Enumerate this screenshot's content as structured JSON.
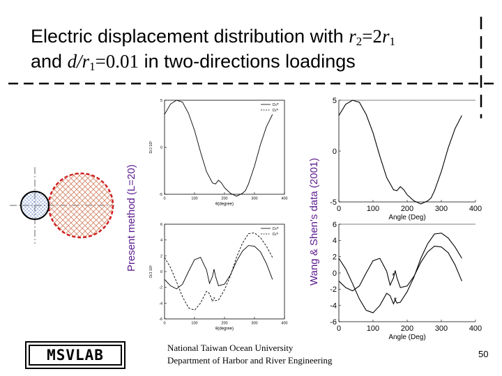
{
  "title": {
    "line1_text": "Electric displacement distribution    with ",
    "line1_math_r2": "r",
    "line1_sub2": "2",
    "line1_eq": "=2",
    "line1_math_r1": "r",
    "line1_sub1": "1",
    "line2_text1": "and ",
    "line2_math": "d/r",
    "line2_sub": "1",
    "line2_eq": "=0.01",
    "line2_text2": " in two-directions loadings"
  },
  "labels": {
    "left": "Present method (L=20)",
    "right": "Wang & Shen's data (2001)"
  },
  "logo": "MSVLAB",
  "footer": {
    "line1": "National Taiwan Ocean University",
    "line2": "Department of Harbor and River Engineering"
  },
  "page_number": "50",
  "colors": {
    "title_accent": "#000000",
    "label_color": "#5a1a8c",
    "inclusion_hatch": "#d08060",
    "inclusion_border": "#d02020",
    "hole_color": "#3060c0"
  },
  "chart_data": [
    {
      "type": "line",
      "id": "present-top",
      "xlabel": "θ(degree)",
      "ylabel": "D/J 10²",
      "xlim": [
        0,
        400
      ],
      "ylim": [
        -5,
        5
      ],
      "xticks": [
        "0",
        "100",
        "200",
        "300",
        "400"
      ],
      "yticks": [
        "5",
        "0",
        "-5"
      ],
      "legend": [
        "Dₙᴿ",
        "Dₜᴿ"
      ],
      "series": [
        {
          "name": "Dₙᴿ",
          "style": "solid",
          "x": [
            0,
            20,
            40,
            60,
            80,
            100,
            120,
            140,
            160,
            170,
            180,
            190,
            200,
            220,
            240,
            260,
            270,
            280,
            300,
            320,
            340,
            360
          ],
          "y": [
            3.5,
            4.6,
            5.0,
            4.8,
            3.6,
            1.8,
            -0.5,
            -2.6,
            -3.8,
            -3.9,
            -3.5,
            -3.8,
            -4.3,
            -4.9,
            -5.2,
            -4.9,
            -4.6,
            -3.9,
            -2.0,
            0.3,
            2.2,
            3.5
          ]
        }
      ]
    },
    {
      "type": "line",
      "id": "present-bottom",
      "xlabel": "θ(degree)",
      "ylabel": "D/J 10²",
      "xlim": [
        0,
        400
      ],
      "ylim": [
        -6,
        6
      ],
      "xticks": [
        "0",
        "100",
        "200",
        "300",
        "400"
      ],
      "yticks": [
        "6",
        "4",
        "2",
        "0",
        "-2",
        "-4",
        "-6"
      ],
      "legend": [
        "Dₙᴿ",
        "Dₜᴿ"
      ],
      "series": [
        {
          "name": "Dₙᴿ",
          "style": "solid",
          "x": [
            0,
            20,
            40,
            60,
            80,
            100,
            120,
            140,
            150,
            160,
            165,
            170,
            180,
            200,
            220,
            240,
            260,
            280,
            300,
            320,
            340,
            360
          ],
          "y": [
            -1.0,
            -1.8,
            -2.2,
            -1.6,
            0.0,
            1.5,
            1.8,
            0.2,
            -1.5,
            -0.6,
            0.3,
            -0.6,
            -1.8,
            -1.6,
            -0.4,
            1.3,
            2.6,
            3.3,
            3.2,
            2.5,
            1.0,
            -1.0
          ]
        },
        {
          "name": "Dₜᴿ",
          "style": "dashed",
          "x": [
            0,
            20,
            40,
            60,
            80,
            100,
            120,
            140,
            150,
            160,
            165,
            170,
            180,
            200,
            220,
            240,
            260,
            280,
            300,
            320,
            340,
            360
          ],
          "y": [
            1.8,
            0.5,
            -1.3,
            -3.2,
            -4.6,
            -4.9,
            -4.0,
            -2.5,
            -2.8,
            -3.8,
            -3.3,
            -3.7,
            -3.6,
            -2.3,
            -0.5,
            1.8,
            3.6,
            4.8,
            4.9,
            4.3,
            3.2,
            1.8
          ]
        }
      ]
    },
    {
      "type": "line",
      "id": "wang-top",
      "xlabel": "Angle (Deg)",
      "ylabel": "",
      "xlim": [
        0,
        400
      ],
      "ylim": [
        -5,
        5
      ],
      "xticks": [
        "0",
        "100",
        "200",
        "300",
        "400"
      ],
      "yticks": [
        "5",
        "0",
        "-5"
      ],
      "series": [
        {
          "name": "",
          "style": "solid",
          "x": [
            0,
            20,
            40,
            60,
            80,
            100,
            120,
            140,
            160,
            170,
            180,
            190,
            200,
            220,
            240,
            260,
            270,
            280,
            300,
            320,
            340,
            360
          ],
          "y": [
            3.5,
            4.6,
            5.0,
            4.8,
            3.6,
            1.8,
            -0.5,
            -2.6,
            -3.8,
            -3.9,
            -3.5,
            -3.8,
            -4.3,
            -4.9,
            -5.2,
            -4.9,
            -4.6,
            -3.9,
            -2.0,
            0.3,
            2.2,
            3.5
          ]
        }
      ]
    },
    {
      "type": "line",
      "id": "wang-bottom",
      "xlabel": "Angle (Deg)",
      "ylabel": "",
      "xlim": [
        0,
        400
      ],
      "ylim": [
        -6,
        6
      ],
      "xticks": [
        "0",
        "100",
        "200",
        "300",
        "400"
      ],
      "yticks": [
        "6",
        "4",
        "2",
        "0",
        "-2",
        "-4",
        "-6"
      ],
      "series": [
        {
          "name": "",
          "style": "solid",
          "x": [
            0,
            20,
            40,
            60,
            80,
            100,
            120,
            140,
            150,
            160,
            165,
            170,
            180,
            200,
            220,
            240,
            260,
            280,
            300,
            320,
            340,
            360
          ],
          "y": [
            -1.0,
            -1.8,
            -2.2,
            -1.6,
            0.0,
            1.5,
            1.8,
            0.2,
            -1.5,
            -0.6,
            0.3,
            -0.6,
            -1.8,
            -1.6,
            -0.4,
            1.3,
            2.6,
            3.3,
            3.2,
            2.5,
            1.0,
            -1.0
          ]
        },
        {
          "name": "",
          "style": "solid",
          "x": [
            0,
            20,
            40,
            60,
            80,
            100,
            120,
            140,
            150,
            160,
            165,
            170,
            180,
            200,
            220,
            240,
            260,
            280,
            300,
            320,
            340,
            360
          ],
          "y": [
            1.8,
            0.5,
            -1.3,
            -3.2,
            -4.6,
            -4.9,
            -4.0,
            -2.5,
            -2.8,
            -3.8,
            -3.3,
            -3.7,
            -3.6,
            -2.3,
            -0.5,
            1.8,
            3.6,
            4.8,
            4.9,
            4.3,
            3.2,
            1.8
          ]
        }
      ]
    }
  ]
}
